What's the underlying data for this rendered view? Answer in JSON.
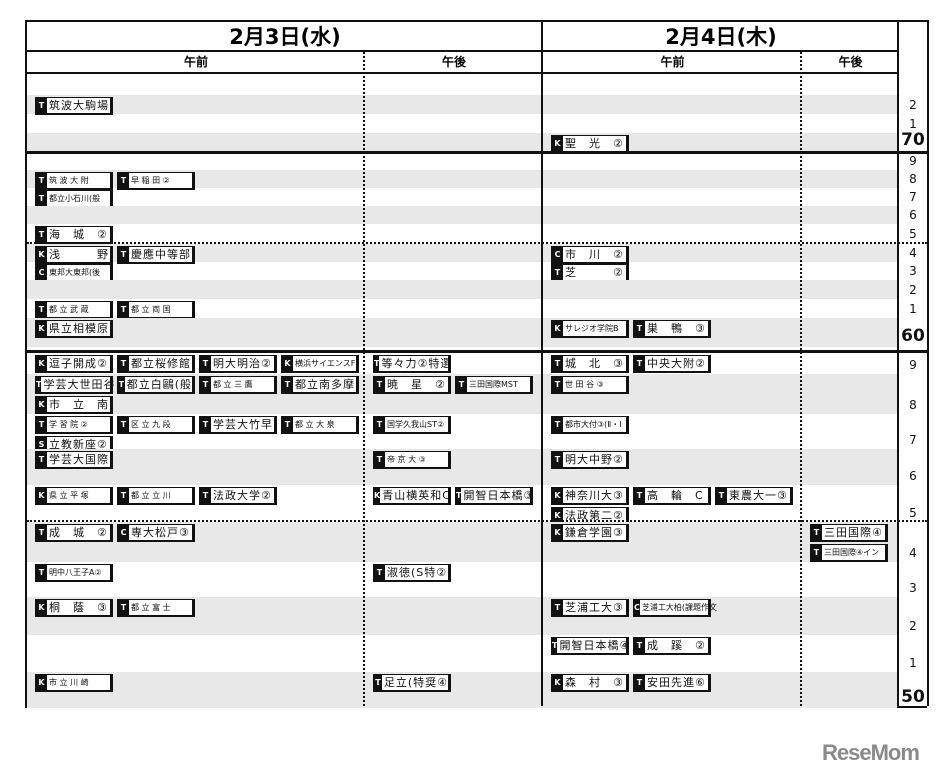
{
  "header": {
    "days": [
      {
        "date": "2月3日(水)",
        "am": "午前",
        "pm": "午後"
      },
      {
        "date": "2月4日(木)",
        "am": "午前",
        "pm": "午後"
      }
    ]
  },
  "rows": [
    {
      "score": "",
      "am3": [],
      "pm3": [],
      "am4": [],
      "pm4": []
    },
    {
      "score": "2",
      "am3": [
        {
          "t": "T",
          "n": "筑波大駒場"
        }
      ],
      "pm3": [],
      "am4": [],
      "pm4": []
    },
    {
      "score": "1",
      "am3": [],
      "pm3": [],
      "am4": [],
      "pm4": []
    },
    {
      "score": "70",
      "am3": [],
      "pm3": [],
      "am4": [
        {
          "t": "K",
          "n": "聖　光　②"
        }
      ],
      "pm4": []
    },
    {
      "score": "9",
      "am3": [],
      "pm3": [],
      "am4": [],
      "pm4": []
    },
    {
      "score": "8",
      "am3": [
        {
          "t": "T",
          "n": "筑 波 大 附"
        },
        {
          "t": "T",
          "n": "早 稲 田 ②"
        }
      ],
      "pm3": [],
      "am4": [],
      "pm4": []
    },
    {
      "score": "7",
      "am3": [
        {
          "t": "T",
          "n": "都立小石川(般"
        }
      ],
      "pm3": [],
      "am4": [],
      "pm4": []
    },
    {
      "score": "6",
      "am3": [],
      "pm3": [],
      "am4": [],
      "pm4": []
    },
    {
      "score": "5",
      "am3": [
        {
          "t": "T",
          "n": "海　城　②"
        }
      ],
      "pm3": [],
      "am4": [],
      "pm4": []
    },
    {
      "score": "4",
      "am3": [
        {
          "t": "K",
          "n": "浅　　　野"
        },
        {
          "t": "T",
          "n": "慶應中等部"
        }
      ],
      "pm3": [],
      "am4": [
        {
          "t": "C",
          "n": "市　川　②"
        }
      ],
      "pm4": []
    },
    {
      "score": "3",
      "am3": [
        {
          "t": "C",
          "n": "東邦大東邦(後"
        }
      ],
      "pm3": [],
      "am4": [
        {
          "t": "T",
          "n": "芝　　　②"
        }
      ],
      "pm4": []
    },
    {
      "score": "2",
      "am3": [],
      "pm3": [],
      "am4": [],
      "pm4": []
    },
    {
      "score": "1",
      "am3": [
        {
          "t": "T",
          "n": "都 立 武 蔵"
        },
        {
          "t": "T",
          "n": "都 立 両 国"
        }
      ],
      "pm3": [],
      "am4": [],
      "pm4": []
    },
    {
      "score": "60",
      "am3": [
        {
          "t": "K",
          "n": "県立相模原"
        }
      ],
      "pm3": [],
      "am4": [
        {
          "t": "K",
          "n": "サレジオ学院B"
        },
        {
          "t": "T",
          "n": "巣　鴨　③"
        }
      ],
      "pm4": []
    },
    {
      "score": "9",
      "am3": [
        {
          "t": "K",
          "n": "逗子開成②"
        },
        {
          "t": "T",
          "n": "都立桜修館"
        },
        {
          "t": "T",
          "n": "明大明治②"
        },
        {
          "t": "K",
          "n": "横浜サイエンスF"
        }
      ],
      "pm3": [
        {
          "t": "T",
          "n": "等々力②特選"
        }
      ],
      "am4": [
        {
          "t": "T",
          "n": "城　北　③"
        },
        {
          "t": "T",
          "n": "中央大附②"
        }
      ],
      "pm4": []
    },
    {
      "score": "8",
      "am3": [
        {
          "t": "T",
          "n": "学芸大世田谷"
        },
        {
          "t": "T",
          "n": "都立白鷗(般"
        },
        {
          "t": "T",
          "n": "都 立 三 鷹"
        },
        {
          "t": "T",
          "n": "都立南多摩"
        },
        {
          "t": "K",
          "n": "市　立　南"
        }
      ],
      "pm3": [
        {
          "t": "T",
          "n": "暁　星　②"
        },
        {
          "t": "T",
          "n": "三田国際MST"
        }
      ],
      "am4": [
        {
          "t": "T",
          "n": "世 田 谷 ③"
        }
      ],
      "pm4": []
    },
    {
      "score": "7",
      "am3": [
        {
          "t": "T",
          "n": "学 習 院 ②"
        },
        {
          "t": "T",
          "n": "区 立 九 段"
        },
        {
          "t": "T",
          "n": "学芸大竹早"
        },
        {
          "t": "T",
          "n": "都 立 大 泉"
        },
        {
          "t": "S",
          "n": "立教新座②"
        }
      ],
      "pm3": [
        {
          "t": "T",
          "n": "国学久我山ST②"
        }
      ],
      "am4": [
        {
          "t": "T",
          "n": "都市大付③(Ⅱ・Ⅰ"
        }
      ],
      "pm4": []
    },
    {
      "score": "6",
      "am3": [
        {
          "t": "T",
          "n": "学芸大国際"
        }
      ],
      "pm3": [
        {
          "t": "T",
          "n": "帝 京 大 ③"
        }
      ],
      "am4": [
        {
          "t": "T",
          "n": "明大中野②"
        }
      ],
      "pm4": []
    },
    {
      "score": "5",
      "am3": [
        {
          "t": "K",
          "n": "県 立 平 塚"
        },
        {
          "t": "T",
          "n": "都 立 立 川"
        },
        {
          "t": "T",
          "n": "法政大学②"
        }
      ],
      "pm3": [
        {
          "t": "K",
          "n": "青山横英和C"
        },
        {
          "t": "T",
          "n": "開智日本橋③"
        }
      ],
      "am4": [
        {
          "t": "K",
          "n": "神奈川大③"
        },
        {
          "t": "T",
          "n": "高　輪　C"
        },
        {
          "t": "T",
          "n": "東農大一③"
        },
        {
          "t": "K",
          "n": "法政第二②"
        }
      ],
      "pm4": []
    },
    {
      "score": "4",
      "am3": [
        {
          "t": "T",
          "n": "成　城　②"
        },
        {
          "t": "C",
          "n": "専大松戸③"
        }
      ],
      "pm3": [],
      "am4": [
        {
          "t": "K",
          "n": "鎌倉学園③"
        }
      ],
      "pm4": [
        {
          "t": "T",
          "n": "三田国際④"
        },
        {
          "t": "T",
          "n": "三田国際④イン"
        }
      ]
    },
    {
      "score": "3",
      "am3": [
        {
          "t": "T",
          "n": "明中八王子A②"
        }
      ],
      "pm3": [
        {
          "t": "T",
          "n": "淑徳(S特②"
        }
      ],
      "am4": [],
      "pm4": []
    },
    {
      "score": "2",
      "am3": [
        {
          "t": "K",
          "n": "桐　蔭　③"
        },
        {
          "t": "T",
          "n": "都 立 富 士"
        }
      ],
      "pm3": [],
      "am4": [
        {
          "t": "T",
          "n": "芝浦工大③"
        },
        {
          "t": "C",
          "n": "芝浦工大柏(課題作文"
        }
      ],
      "pm4": []
    },
    {
      "score": "1",
      "am3": [],
      "pm3": [],
      "am4": [
        {
          "t": "T",
          "n": "開智日本橋④"
        },
        {
          "t": "T",
          "n": "成　蹊　②"
        }
      ],
      "pm4": []
    },
    {
      "score": "50",
      "am3": [
        {
          "t": "K",
          "n": "市 立 川 崎"
        }
      ],
      "pm3": [
        {
          "t": "T",
          "n": "足立(特奨④"
        }
      ],
      "am4": [
        {
          "t": "K",
          "n": "森　村　③"
        },
        {
          "t": "T",
          "n": "安田先進⑥"
        }
      ],
      "pm4": []
    }
  ],
  "logo": "ReseMom"
}
